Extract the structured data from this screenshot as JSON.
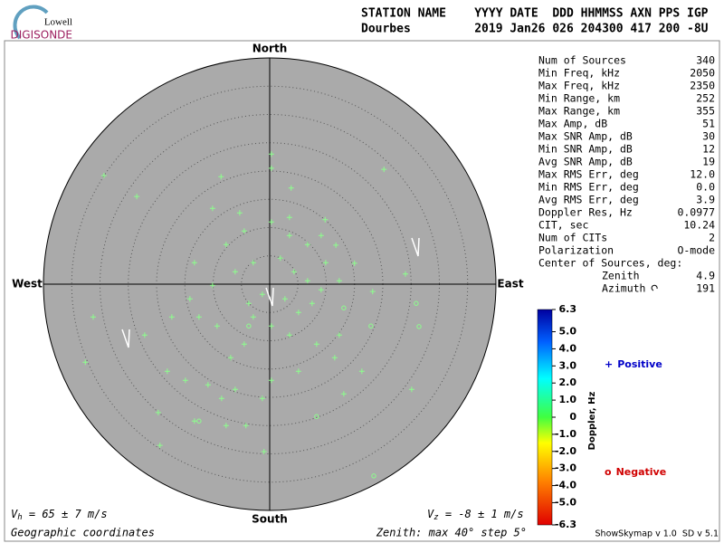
{
  "header": {
    "logo_top": "Lowell",
    "logo_bottom": "DIGISONDE",
    "line1": "STATION NAME    YYYY DATE  DDD HHMMSS AXN PPS IGP",
    "line2": "Dourbes         2019 Jan26 026 204300 417 200 -8U"
  },
  "stats": {
    "rows": [
      [
        "Num of Sources",
        "340"
      ],
      [
        "Min Freq, kHz",
        "2050"
      ],
      [
        "Max Freq, kHz",
        "2350"
      ],
      [
        "Min Range, km",
        "252"
      ],
      [
        "Max Range, km",
        "355"
      ],
      [
        "Max Amp, dB",
        "51"
      ],
      [
        "Max SNR Amp, dB",
        "30"
      ],
      [
        "Min SNR Amp, dB",
        "12"
      ],
      [
        "Avg SNR Amp, dB",
        "19"
      ],
      [
        "Max RMS Err, deg",
        "12.0"
      ],
      [
        "Min RMS Err, deg",
        "0.0"
      ],
      [
        "Avg RMS Err, deg",
        "3.9"
      ],
      [
        "Doppler Res, Hz",
        "0.0977"
      ],
      [
        "CIT, sec",
        "10.24"
      ],
      [
        "Num of CITs",
        "2"
      ],
      [
        "Polarization",
        "O-mode"
      ]
    ],
    "center_title": "Center of Sources, deg:",
    "center_rows": [
      [
        "Zenith",
        "4.9"
      ],
      [
        "Azimuth",
        "191"
      ]
    ]
  },
  "footer": {
    "vh": [
      "V",
      "h",
      " = 65 ± 7 m/s"
    ],
    "vz": [
      "V",
      "z",
      " = -8 ± 1 m/s"
    ],
    "coordinates": "Geographic coordinates",
    "zenith": "Zenith: max 40°  step 5°",
    "version": "ShowSkymap v 1.0  SD v 5.1"
  },
  "colorbar": {
    "label": "Doppler, Hz",
    "clim": [
      -6.3,
      6.3
    ],
    "ticks": [
      {
        "value": 6.3,
        "label": "6.3"
      },
      {
        "value": 5,
        "label": "5.0"
      },
      {
        "value": 4,
        "label": "4.0"
      },
      {
        "value": 3,
        "label": "3.0"
      },
      {
        "value": 2,
        "label": "2.0"
      },
      {
        "value": 1,
        "label": "1.0"
      },
      0,
      {
        "value": -1,
        "label": "-1.0"
      },
      {
        "value": -2,
        "label": "-2.0"
      },
      {
        "value": -3,
        "label": "-3.0"
      },
      {
        "value": -4,
        "label": "-4.0"
      },
      {
        "value": -5,
        "label": "-5.0"
      },
      {
        "value": -6.3,
        "label": "-6.3"
      }
    ]
  },
  "chart_data": {
    "type": "skymap",
    "directions": {
      "north": "North",
      "south": "South",
      "east": "East",
      "west": "West"
    },
    "rlim": [
      0,
      40
    ],
    "rticks": [
      5,
      10,
      15,
      20,
      25,
      30,
      35
    ],
    "grid": true,
    "series": [
      {
        "name": "Positive",
        "marker": "+",
        "color": "#0000c8",
        "marker_color": "#8cff8c",
        "x": [
          -29.3,
          -23.5,
          -8.6,
          0.3,
          0.3,
          3.8,
          9.8,
          11.7,
          20.2,
          15,
          18.2,
          24,
          25.1,
          -19.4,
          -19.7,
          -31.2,
          -32.6,
          -1,
          -13.3,
          -7.7,
          -4.2,
          -6.1,
          -8.5,
          -10.9,
          -14.9,
          -18.1,
          0.3,
          5.1,
          13.1,
          16.3,
          11.5,
          8.3,
          3.5,
          0.3,
          -2.9,
          -4.5,
          -6.9,
          -9.3,
          -12.5,
          -14.1,
          -10.1,
          -6.1,
          -2.9,
          1.9,
          4.3,
          6.7,
          9.1,
          7.5,
          5.1,
          2.7,
          -1.3,
          -3.7,
          9.9,
          12.3,
          6.7,
          3.5,
          0.3,
          -4.5,
          -7.7,
          -13.3,
          -10.1,
          -5.3,
          3.5,
          9.1,
          -17.3,
          -22.1,
          12.3,
          -1.3
        ],
        "y": [
          19.2,
          15.5,
          19,
          23,
          20.5,
          17,
          11.4,
          6.9,
          20.3,
          3.7,
          -1.3,
          1.8,
          -18.6,
          -28.5,
          -22.7,
          -5.8,
          -13.8,
          -29.6,
          -24.2,
          -25,
          -25,
          -18.6,
          -20.2,
          -17.8,
          -17,
          -15.4,
          -17,
          -15.4,
          -19.4,
          -15.4,
          -13,
          -10.6,
          -9,
          -7.4,
          -5.8,
          -10.6,
          -13,
          -7.4,
          -5.8,
          -2.6,
          -0.2,
          2.2,
          3.8,
          4.6,
          2.2,
          0.6,
          -1,
          -3.4,
          -5,
          -2.6,
          -1.8,
          -3.4,
          3.8,
          0.6,
          7,
          8.6,
          11,
          9.4,
          7,
          3.8,
          13.4,
          12.6,
          11.8,
          8.6,
          -5.8,
          -9,
          -9,
          -20.2
        ]
      },
      {
        "name": "Negative",
        "marker": "o",
        "color": "#d00000",
        "marker_color": "#8cff8c",
        "x": [
          26.4,
          18.4,
          17.9,
          13.1,
          25.9,
          8.3,
          -12.5,
          -3.7
        ],
        "y": [
          -7.5,
          -33.9,
          -7.4,
          -4.2,
          -3.4,
          -23.4,
          -24.2,
          -7.4
        ]
      }
    ]
  }
}
